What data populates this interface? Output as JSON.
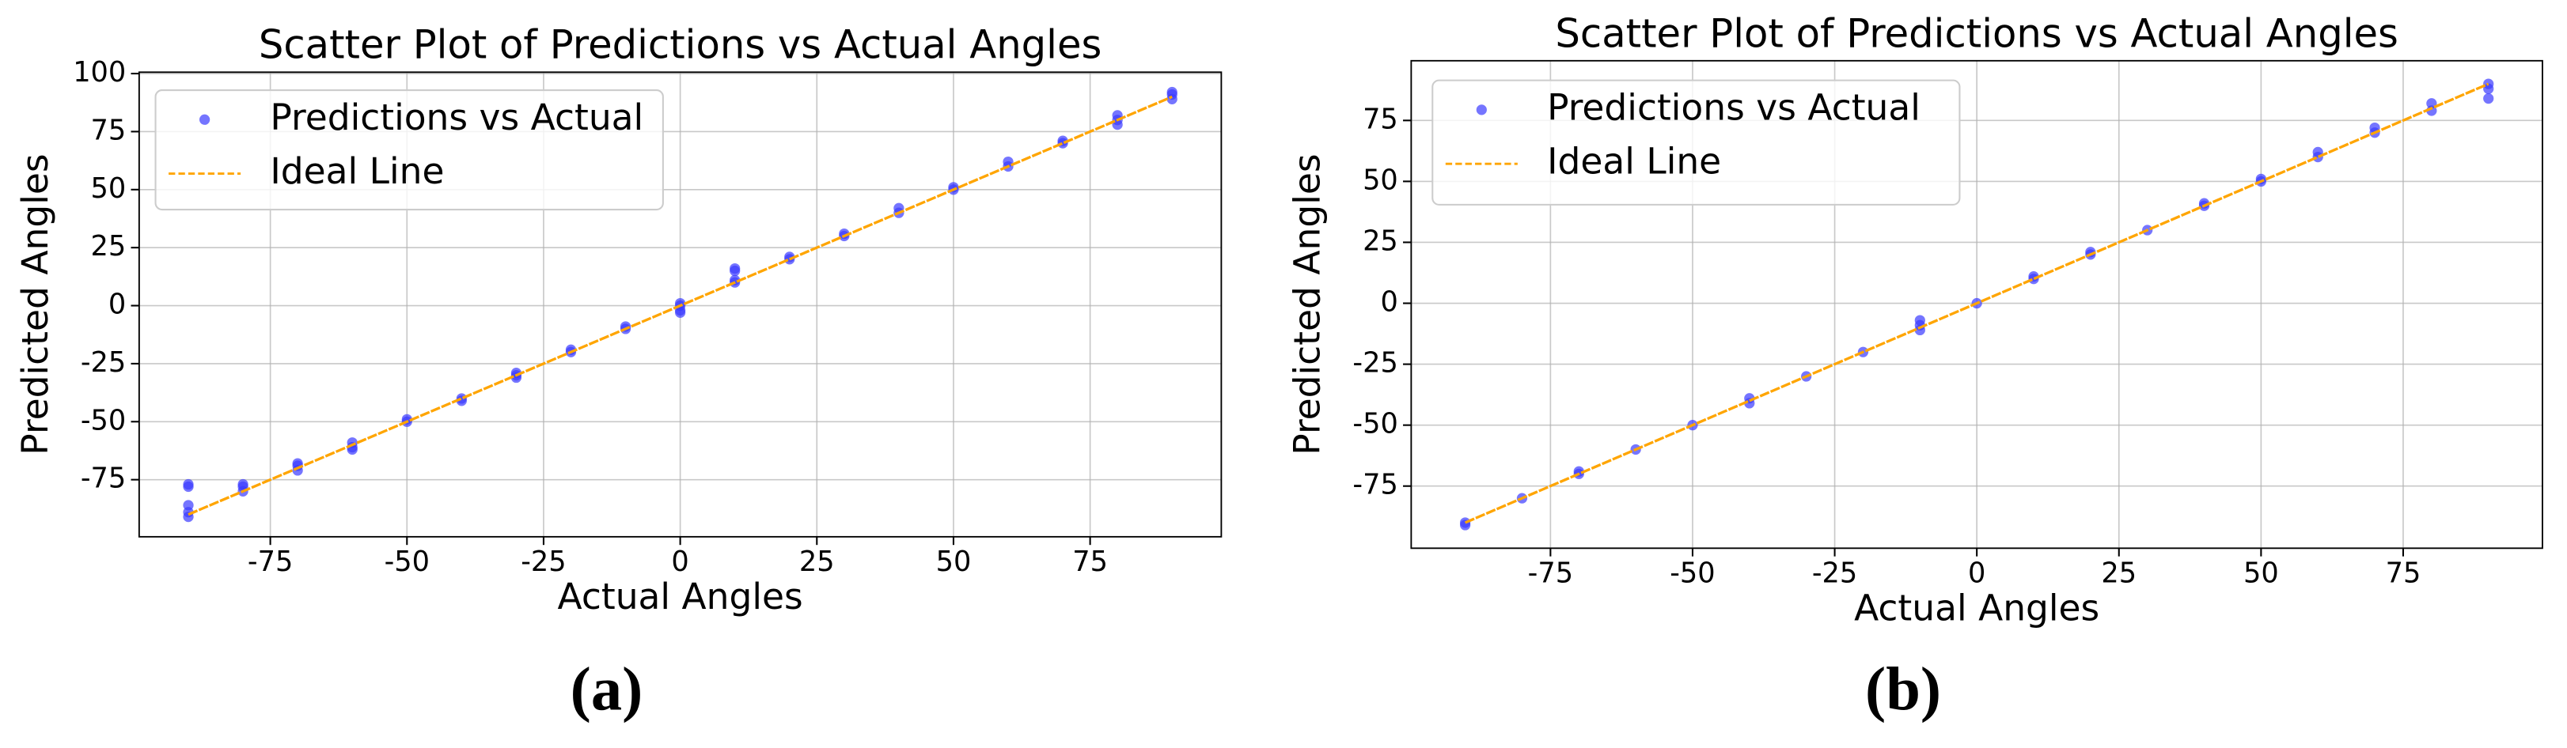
{
  "chart_data": [
    {
      "type": "scatter",
      "title": "Scatter Plot of Predictions vs Actual Angles",
      "xlabel": "Actual Angles",
      "ylabel": "Predicted Angles",
      "caption": "(a)",
      "xlim": [
        -99,
        99
      ],
      "ylim": [
        -99.6,
        100.6
      ],
      "xticks": [
        -75,
        -50,
        -25,
        0,
        25,
        50,
        75
      ],
      "yticks": [
        -75,
        -50,
        -25,
        0,
        25,
        50,
        75,
        100
      ],
      "grid": true,
      "legend": "upper left",
      "series": [
        {
          "name": "Predictions vs Actual",
          "color": "#3a3aff",
          "mode": "markers",
          "x": [
            -90,
            -90,
            -90,
            -90,
            -90,
            -80,
            -80,
            -80,
            -70,
            -70,
            -70,
            -60,
            -60,
            -60,
            -50,
            -50,
            -40,
            -40,
            -30,
            -30,
            -30,
            -20,
            -20,
            -10,
            -10,
            0,
            0,
            0,
            0,
            10,
            10,
            10,
            10,
            20,
            20,
            30,
            30,
            40,
            40,
            50,
            50,
            60,
            60,
            70,
            70,
            80,
            80,
            80,
            90,
            90,
            90
          ],
          "values": [
            -91,
            -89,
            -86,
            -78,
            -77,
            -80,
            -78,
            -77,
            -71,
            -69,
            -68,
            -61,
            -59,
            -62,
            -50,
            -49,
            -40,
            -41,
            -31,
            -29,
            -30,
            -20,
            -19,
            -10,
            -9,
            0,
            -2,
            -3,
            1,
            10,
            15,
            16,
            11,
            20,
            21,
            30,
            31,
            40,
            42,
            50,
            51,
            60,
            62,
            70,
            71,
            78,
            80,
            82,
            89,
            91,
            92
          ]
        },
        {
          "name": "Ideal Line",
          "color": "#ffa500",
          "mode": "dashed-line",
          "x": [
            -90,
            90
          ],
          "values": [
            -90,
            90
          ]
        }
      ]
    },
    {
      "type": "scatter",
      "title": "Scatter Plot of Predictions vs Actual Angles",
      "xlabel": "Actual Angles",
      "ylabel": "Predicted Angles",
      "caption": "(b)",
      "xlim": [
        -99.5,
        99.5
      ],
      "ylim": [
        -100.5,
        99.5
      ],
      "xticks": [
        -75,
        -50,
        -25,
        0,
        25,
        50,
        75
      ],
      "yticks": [
        -75,
        -50,
        -25,
        0,
        25,
        50,
        75
      ],
      "grid": true,
      "legend": "upper left",
      "series": [
        {
          "name": "Predictions vs Actual",
          "color": "#3a3aff",
          "mode": "markers",
          "x": [
            -90,
            -90,
            -80,
            -70,
            -70,
            -60,
            -50,
            -40,
            -40,
            -30,
            -20,
            -10,
            -10,
            -10,
            0,
            10,
            10,
            20,
            20,
            30,
            40,
            40,
            50,
            50,
            60,
            60,
            70,
            70,
            80,
            80,
            90,
            90,
            90
          ],
          "values": [
            -91,
            -90,
            -80,
            -70,
            -69,
            -60,
            -50,
            -41,
            -39,
            -30,
            -20,
            -11,
            -9,
            -7,
            0,
            10,
            11,
            20,
            21,
            30,
            40,
            41,
            50,
            51,
            60,
            62,
            70,
            72,
            79,
            82,
            84,
            88,
            90
          ]
        },
        {
          "name": "Ideal Line",
          "color": "#ffa500",
          "mode": "dashed-line",
          "x": [
            -90,
            90
          ],
          "values": [
            -90,
            90
          ]
        }
      ]
    }
  ]
}
